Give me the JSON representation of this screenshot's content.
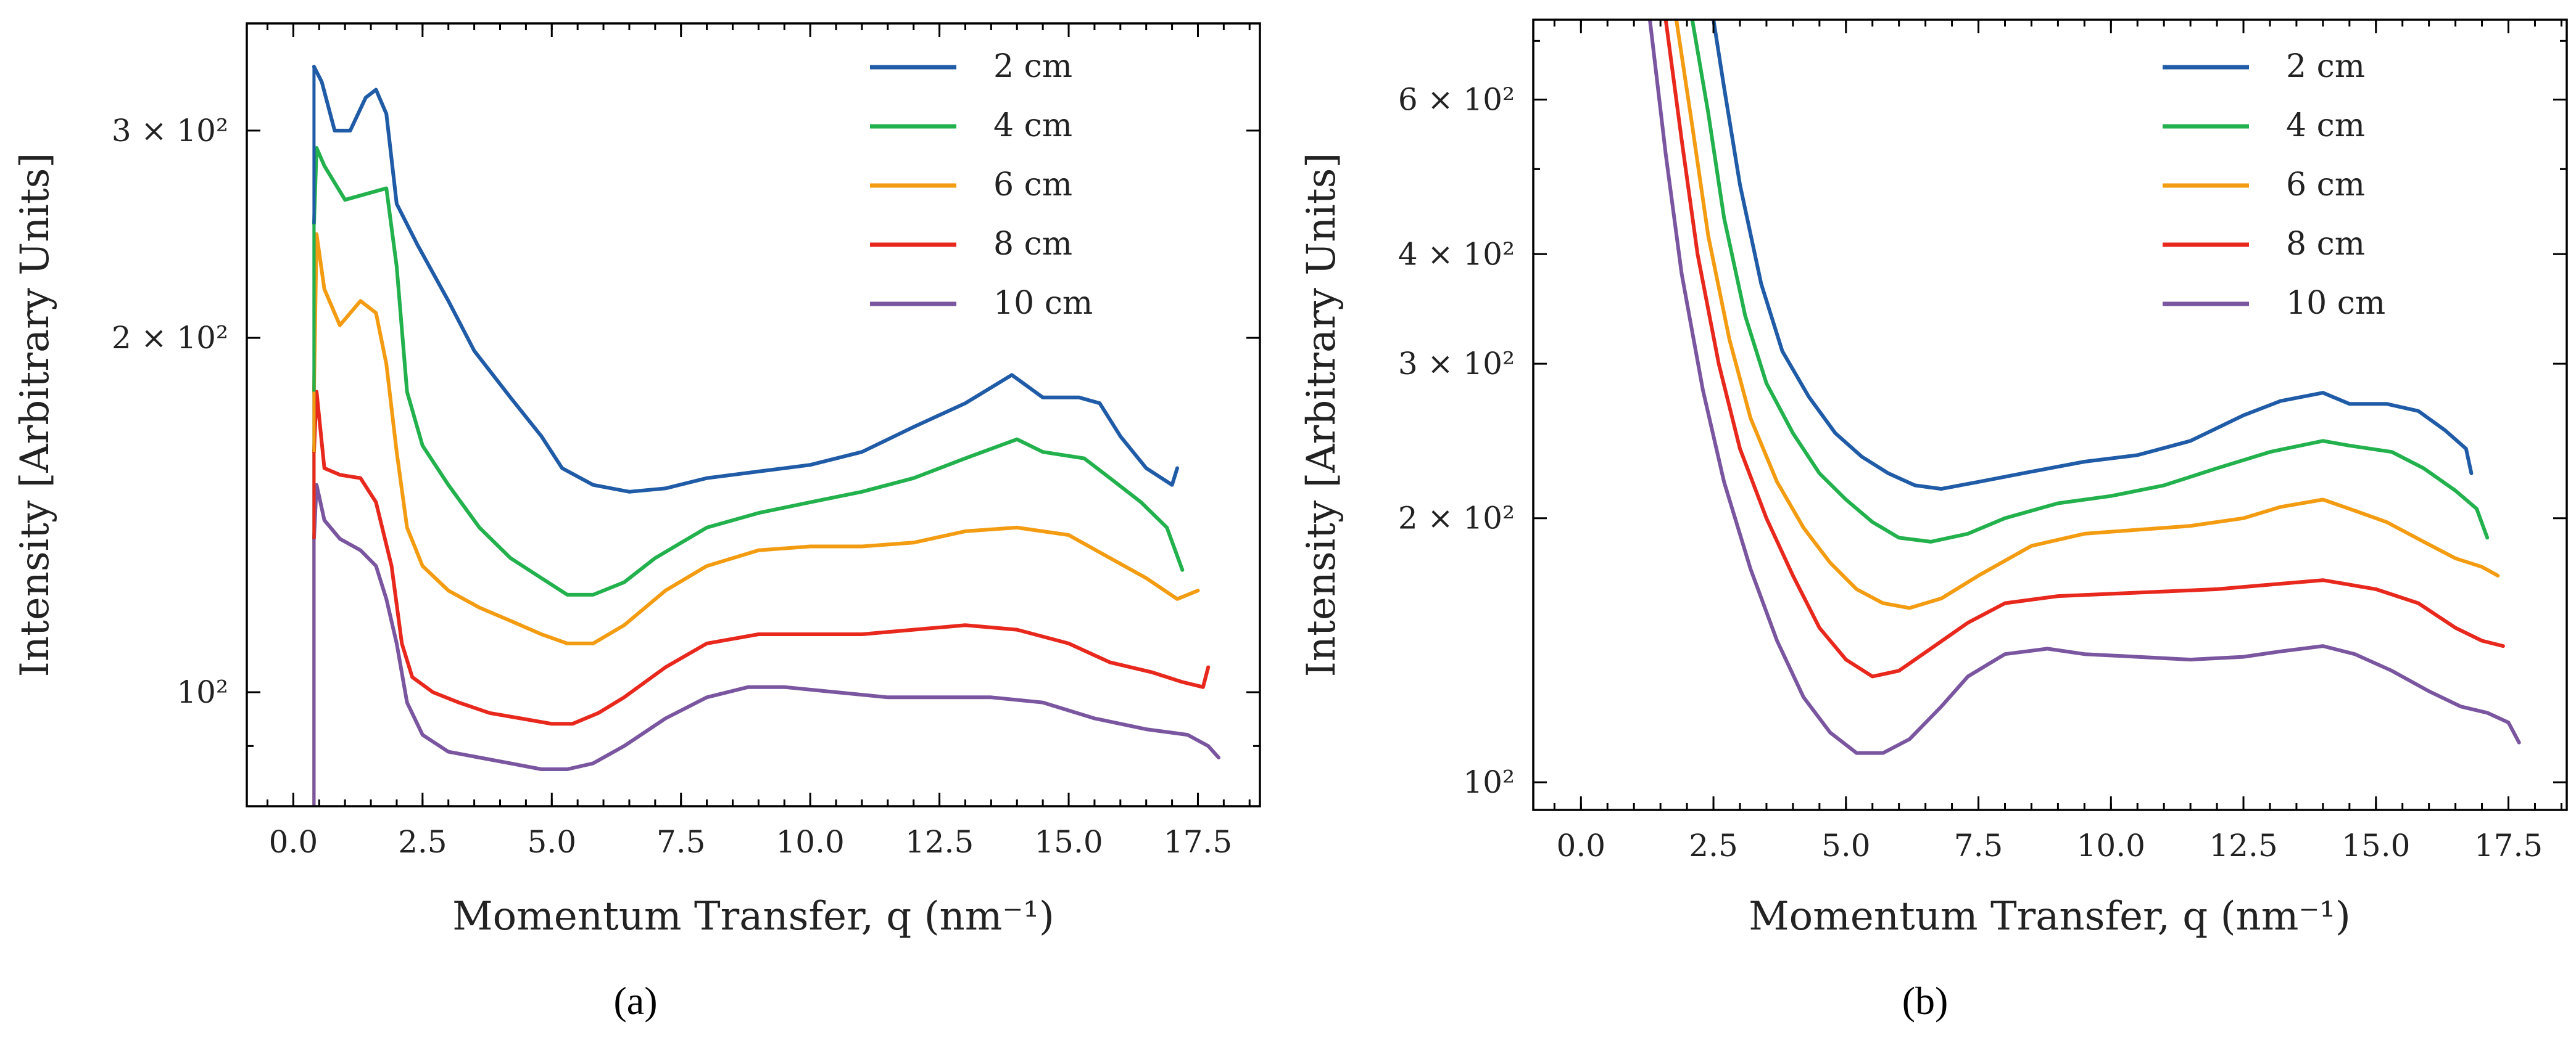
{
  "chart_data": [
    {
      "type": "line",
      "panel": "a",
      "caption": "(a)",
      "xlabel": "Momentum Transfer, q (nm⁻¹)",
      "ylabel": "Intensity [Arbitrary Units]",
      "xlim": [
        -0.9,
        18.7
      ],
      "ylim": [
        80,
        370
      ],
      "yscale": "log",
      "xticks": [
        0,
        2.5,
        5,
        7.5,
        10,
        12.5,
        15,
        17.5
      ],
      "xtick_labels": [
        "0.0",
        "2.5",
        "5.0",
        "7.5",
        "10.0",
        "12.5",
        "15.0",
        "17.5"
      ],
      "yticks": [
        100,
        200,
        300
      ],
      "ytick_labels": [
        "10²",
        "2 × 10²",
        "3 × 10²"
      ],
      "legend": "top-right",
      "series": [
        {
          "name": "2 cm",
          "color": "#1f5ba6",
          "x": [
            0.4,
            0.55,
            0.8,
            1.1,
            1.4,
            1.6,
            1.8,
            2.0,
            2.4,
            3.0,
            3.5,
            4.2,
            4.8,
            5.2,
            5.8,
            6.5,
            7.2,
            8.0,
            9.0,
            10.0,
            11.0,
            12.0,
            13.0,
            13.9,
            14.5,
            15.2,
            15.6,
            16.0,
            16.5,
            17.0,
            17.1
          ],
          "y": [
            340,
            330,
            300,
            300,
            320,
            325,
            310,
            260,
            240,
            215,
            195,
            178,
            165,
            155,
            150,
            148,
            149,
            152,
            154,
            156,
            160,
            168,
            176,
            186,
            178,
            178,
            176,
            165,
            155,
            150,
            155
          ]
        },
        {
          "name": "4 cm",
          "color": "#22b14c",
          "x": [
            0.4,
            0.45,
            0.6,
            1.0,
            1.4,
            1.8,
            2.0,
            2.2,
            2.5,
            3.0,
            3.6,
            4.2,
            4.8,
            5.3,
            5.8,
            6.4,
            7.0,
            8.0,
            9.0,
            10.0,
            11.0,
            12.0,
            13.0,
            14.0,
            14.5,
            15.3,
            15.8,
            16.4,
            16.9,
            17.2
          ],
          "y": [
            250,
            290,
            280,
            262,
            265,
            268,
            230,
            180,
            162,
            150,
            138,
            130,
            125,
            121,
            121,
            124,
            130,
            138,
            142,
            145,
            148,
            152,
            158,
            164,
            160,
            158,
            152,
            145,
            138,
            127
          ]
        },
        {
          "name": "6 cm",
          "color": "#f39c12",
          "x": [
            0.4,
            0.45,
            0.6,
            0.9,
            1.3,
            1.6,
            1.8,
            2.0,
            2.2,
            2.5,
            3.0,
            3.6,
            4.2,
            4.8,
            5.3,
            5.8,
            6.4,
            7.2,
            8.0,
            9.0,
            10.0,
            11.0,
            12.0,
            13.0,
            14.0,
            15.0,
            15.8,
            16.5,
            17.1,
            17.5
          ],
          "y": [
            180,
            245,
            220,
            205,
            215,
            210,
            190,
            160,
            138,
            128,
            122,
            118,
            115,
            112,
            110,
            110,
            114,
            122,
            128,
            132,
            133,
            133,
            134,
            137,
            138,
            136,
            130,
            125,
            120,
            122
          ]
        },
        {
          "name": "8 cm",
          "color": "#e8281d",
          "x": [
            0.4,
            0.45,
            0.6,
            0.9,
            1.3,
            1.6,
            1.9,
            2.1,
            2.3,
            2.7,
            3.2,
            3.8,
            4.4,
            5.0,
            5.4,
            5.9,
            6.4,
            7.2,
            8.0,
            9.0,
            10.0,
            11.0,
            12.0,
            13.0,
            14.0,
            15.0,
            15.8,
            16.6,
            17.2,
            17.6,
            17.7
          ],
          "y": [
            160,
            180,
            155,
            153,
            152,
            145,
            128,
            110,
            103,
            100,
            98,
            96,
            95,
            94,
            94,
            96,
            99,
            105,
            110,
            112,
            112,
            112,
            113,
            114,
            113,
            110,
            106,
            104,
            102,
            101,
            105
          ]
        },
        {
          "name": "10 cm",
          "color": "#7a55a0",
          "x": [
            0.4,
            0.45,
            0.6,
            0.9,
            1.3,
            1.6,
            1.8,
            2.0,
            2.2,
            2.5,
            3.0,
            3.6,
            4.2,
            4.8,
            5.3,
            5.8,
            6.4,
            7.2,
            8.0,
            8.8,
            9.5,
            10.5,
            11.5,
            12.5,
            13.5,
            14.5,
            15.5,
            16.5,
            17.3,
            17.7,
            17.9
          ],
          "y": [
            135,
            150,
            140,
            135,
            132,
            128,
            120,
            110,
            98,
            92,
            89,
            88,
            87,
            86,
            86,
            87,
            90,
            95,
            99,
            101,
            101,
            100,
            99,
            99,
            99,
            98,
            95,
            93,
            92,
            90,
            88
          ]
        }
      ]
    },
    {
      "type": "line",
      "panel": "b",
      "caption": "(b)",
      "xlabel": "Momentum Transfer, q (nm⁻¹)",
      "ylabel": "Intensity [Arbitrary Units]",
      "xlim": [
        -0.9,
        18.6
      ],
      "ylim": [
        93,
        740
      ],
      "yscale": "log",
      "xticks": [
        0,
        2.5,
        5,
        7.5,
        10,
        12.5,
        15,
        17.5
      ],
      "xtick_labels": [
        "0.0",
        "2.5",
        "5.0",
        "7.5",
        "10.0",
        "12.5",
        "15.0",
        "17.5"
      ],
      "yticks": [
        100,
        200,
        300,
        400,
        600
      ],
      "ytick_labels": [
        "10²",
        "2 × 10²",
        "3 × 10²",
        "4 × 10²",
        "6 × 10²"
      ],
      "legend": "top-right",
      "series": [
        {
          "name": "2 cm",
          "color": "#1f5ba6",
          "x": [
            2.5,
            2.7,
            3.0,
            3.4,
            3.8,
            4.3,
            4.8,
            5.3,
            5.8,
            6.3,
            6.8,
            7.5,
            8.5,
            9.5,
            10.5,
            11.5,
            12.5,
            13.2,
            14.0,
            14.5,
            15.2,
            15.8,
            16.3,
            16.7,
            16.8
          ],
          "y": [
            740,
            620,
            480,
            370,
            310,
            275,
            250,
            235,
            225,
            218,
            216,
            220,
            226,
            232,
            236,
            245,
            262,
            272,
            278,
            270,
            270,
            265,
            252,
            240,
            225
          ]
        },
        {
          "name": "4 cm",
          "color": "#22b14c",
          "x": [
            2.1,
            2.4,
            2.7,
            3.1,
            3.5,
            4.0,
            4.5,
            5.0,
            5.5,
            6.0,
            6.6,
            7.3,
            8.0,
            9.0,
            10.0,
            11.0,
            12.0,
            13.0,
            14.0,
            14.5,
            15.3,
            15.9,
            16.5,
            16.9,
            17.1
          ],
          "y": [
            740,
            580,
            440,
            340,
            285,
            250,
            225,
            210,
            198,
            190,
            188,
            192,
            200,
            208,
            212,
            218,
            228,
            238,
            245,
            242,
            238,
            228,
            215,
            205,
            190
          ]
        },
        {
          "name": "6 cm",
          "color": "#f39c12",
          "x": [
            1.8,
            2.1,
            2.4,
            2.8,
            3.2,
            3.7,
            4.2,
            4.7,
            5.2,
            5.7,
            6.2,
            6.8,
            7.5,
            8.5,
            9.5,
            10.5,
            11.5,
            12.5,
            13.2,
            14.0,
            14.6,
            15.2,
            15.9,
            16.5,
            17.0,
            17.3
          ],
          "y": [
            740,
            560,
            420,
            320,
            260,
            220,
            195,
            178,
            166,
            160,
            158,
            162,
            172,
            186,
            192,
            194,
            196,
            200,
            206,
            210,
            204,
            198,
            188,
            180,
            176,
            172
          ]
        },
        {
          "name": "8 cm",
          "color": "#e8281d",
          "x": [
            1.6,
            1.9,
            2.2,
            2.6,
            3.0,
            3.5,
            4.0,
            4.5,
            5.0,
            5.5,
            6.0,
            6.6,
            7.3,
            8.0,
            9.0,
            10.0,
            11.0,
            12.0,
            13.0,
            14.0,
            15.0,
            15.8,
            16.5,
            17.0,
            17.4
          ],
          "y": [
            740,
            540,
            400,
            300,
            240,
            200,
            172,
            150,
            138,
            132,
            134,
            142,
            152,
            160,
            163,
            164,
            165,
            166,
            168,
            170,
            166,
            160,
            150,
            145,
            143
          ]
        },
        {
          "name": "10 cm",
          "color": "#7a55a0",
          "x": [
            1.3,
            1.6,
            1.9,
            2.3,
            2.7,
            3.2,
            3.7,
            4.2,
            4.7,
            5.2,
            5.7,
            6.2,
            6.8,
            7.3,
            8.0,
            8.8,
            9.5,
            10.5,
            11.5,
            12.5,
            13.2,
            14.0,
            14.6,
            15.3,
            16.0,
            16.6,
            17.1,
            17.5,
            17.7
          ],
          "y": [
            740,
            520,
            380,
            280,
            220,
            175,
            145,
            125,
            114,
            108,
            108,
            112,
            122,
            132,
            140,
            142,
            140,
            139,
            138,
            139,
            141,
            143,
            140,
            134,
            127,
            122,
            120,
            117,
            111
          ]
        }
      ]
    }
  ]
}
